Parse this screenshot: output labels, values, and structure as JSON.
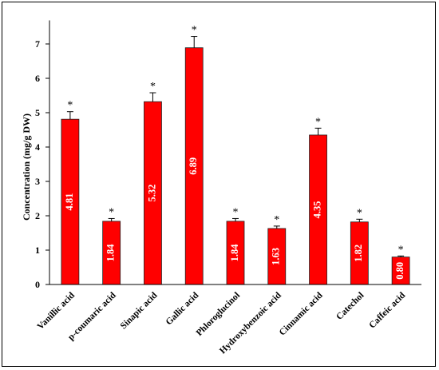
{
  "chart_data": {
    "type": "bar",
    "ylabel": "Concentration (mg/g DW)",
    "ylim": [
      0,
      7.5
    ],
    "yticks": [
      "0",
      "1",
      "2",
      "3",
      "4",
      "5",
      "6",
      "7"
    ],
    "grid": false,
    "categories": [
      "Vanillic acid",
      "p-coumaric acid",
      "Sinapic acid",
      "Gallic acid",
      "Phloroglucinol",
      "Hydroxybenzoic acid",
      "Cinnamic acid",
      "Catechol",
      "Caffeic acid"
    ],
    "values": [
      4.81,
      1.84,
      5.32,
      6.89,
      1.84,
      1.63,
      4.35,
      1.82,
      0.8
    ],
    "value_labels": [
      "4.81",
      "1.84",
      "5.32",
      "6.89",
      "1.84",
      "1.63",
      "4.35",
      "1.82",
      "0.80"
    ],
    "errors": [
      0.22,
      0.08,
      0.26,
      0.33,
      0.08,
      0.07,
      0.2,
      0.08,
      0.03
    ],
    "significance": [
      "*",
      "*",
      "*",
      "*",
      "*",
      "*",
      "*",
      "*",
      "*"
    ],
    "bar_color": "#ff0000"
  }
}
